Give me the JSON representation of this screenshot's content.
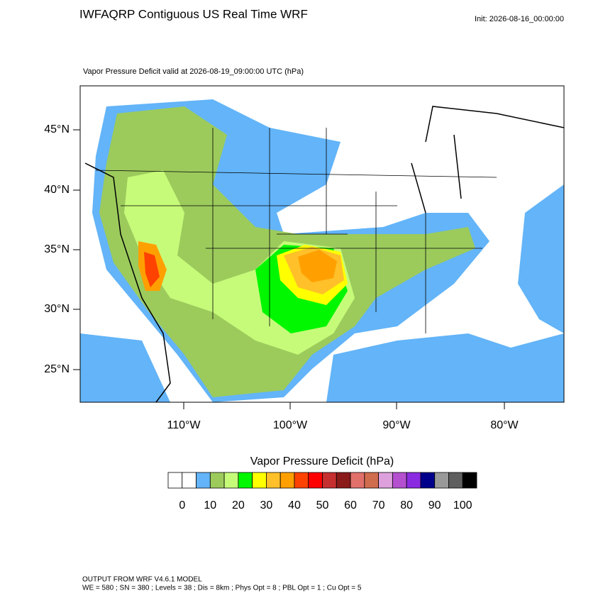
{
  "header": {
    "title": "IWFAQRP Contiguous US Real Time WRF",
    "init": "Init: 2026-08-16_00:00:00"
  },
  "map": {
    "subtitle": "Vapor Pressure Deficit valid at 2026-08-19_09:00:00 UTC   (hPa)",
    "lat_labels": [
      "45°N",
      "40°N",
      "35°N",
      "30°N",
      "25°N"
    ],
    "lon_labels": [
      "110°W",
      "100°W",
      "90°W",
      "80°W"
    ]
  },
  "colorbar": {
    "title": "Vapor Pressure Deficit  (hPa)",
    "colors": [
      "#ffffff",
      "#ffffff",
      "#63b4f8",
      "#9ccb5c",
      "#c6fb7a",
      "#00f700",
      "#ffff00",
      "#ffc02a",
      "#ffa000",
      "#ff4200",
      "#ff0000",
      "#c62f2f",
      "#8b1a1a",
      "#e1706a",
      "#d06c4e",
      "#dda0dd",
      "#b450d0",
      "#8a2be2",
      "#00008b",
      "#999999",
      "#5f5f5f",
      "#000000"
    ],
    "ticks": [
      0,
      10,
      20,
      30,
      40,
      50,
      60,
      70,
      80,
      90,
      100
    ]
  },
  "footer": {
    "line1": "OUTPUT FROM WRF V4.6.1 MODEL",
    "line2": "WE = 580 ; SN = 380 ; Levels = 38 ; Dis = 8km ; Phys Opt = 8 ; PBL Opt = 1 ; Cu Opt = 5"
  }
}
